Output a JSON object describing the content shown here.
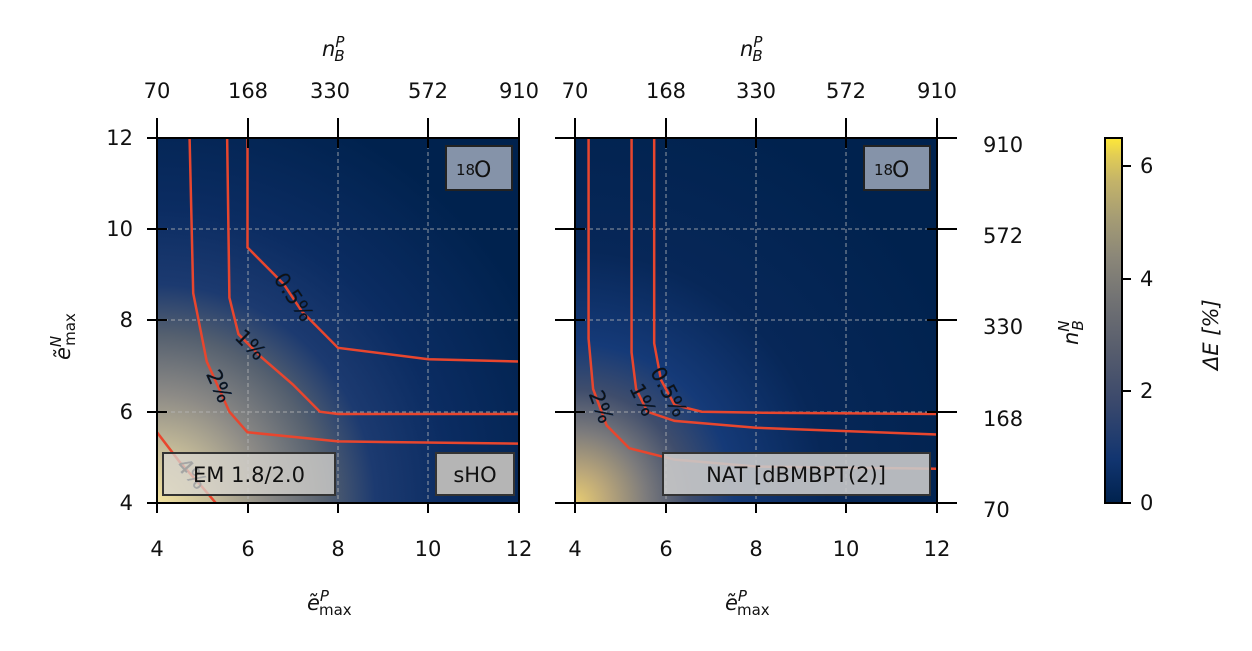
{
  "chart_data": [
    {
      "type": "heatmap",
      "panel": "left",
      "xlabel": "ẽ^P_max",
      "ylabel": "ẽ^N_max",
      "top_label": "n^P_B",
      "xlim": [
        4,
        12
      ],
      "ylim": [
        4,
        12
      ],
      "x_ticks": [
        "4",
        "6",
        "8",
        "10",
        "12"
      ],
      "y_ticks": [
        "4",
        "6",
        "8",
        "10",
        "12"
      ],
      "top_ticks": [
        "70",
        "168",
        "330",
        "572",
        "910"
      ],
      "labels": {
        "nucleus_mass": "18",
        "nucleus_symbol": "O",
        "interaction": "EM 1.8/2.0",
        "basis": "sHO"
      },
      "contours": [
        {
          "level": "0.5%",
          "points": [
            [
              6,
              12
            ],
            [
              6,
              9.6
            ],
            [
              6.8,
              8.8
            ],
            [
              7.2,
              8.2
            ],
            [
              8,
              7.4
            ],
            [
              10,
              7.15
            ],
            [
              12,
              7.1
            ]
          ]
        },
        {
          "level": "1%",
          "points": [
            [
              5.55,
              12
            ],
            [
              5.6,
              8.5
            ],
            [
              5.8,
              7.7
            ],
            [
              6.3,
              7.2
            ],
            [
              7,
              6.6
            ],
            [
              7.6,
              6
            ],
            [
              8,
              5.95
            ],
            [
              12,
              5.95
            ]
          ]
        },
        {
          "level": "2%",
          "points": [
            [
              4.72,
              12
            ],
            [
              4.8,
              8.6
            ],
            [
              5.1,
              7.1
            ],
            [
              5.6,
              6
            ],
            [
              6,
              5.55
            ],
            [
              8,
              5.35
            ],
            [
              12,
              5.3
            ]
          ]
        },
        {
          "level": "4%",
          "points": [
            [
              4,
              5.55
            ],
            [
              4.5,
              4.9
            ],
            [
              5,
              4.35
            ],
            [
              5.3,
              4.0
            ]
          ]
        }
      ]
    },
    {
      "type": "heatmap",
      "panel": "right",
      "xlabel": "ẽ^P_max",
      "right_label": "n^N_B",
      "top_label": "n^P_B",
      "xlim": [
        4,
        12
      ],
      "ylim": [
        4,
        12
      ],
      "x_ticks": [
        "4",
        "6",
        "8",
        "10",
        "12"
      ],
      "right_ticks": [
        "70",
        "168",
        "330",
        "572",
        "910"
      ],
      "top_ticks": [
        "70",
        "168",
        "330",
        "572",
        "910"
      ],
      "labels": {
        "nucleus_mass": "18",
        "nucleus_symbol": "O",
        "basis": "NAT [dBMBPT(2)]"
      },
      "contours": [
        {
          "level": "0.5%",
          "points": [
            [
              5.75,
              12
            ],
            [
              5.75,
              7.5
            ],
            [
              5.9,
              6.7
            ],
            [
              6.2,
              6.15
            ],
            [
              6.8,
              6.0
            ],
            [
              8,
              5.98
            ],
            [
              12,
              5.95
            ]
          ]
        },
        {
          "level": "1%",
          "points": [
            [
              5.25,
              12
            ],
            [
              5.25,
              7.3
            ],
            [
              5.35,
              6.5
            ],
            [
              5.6,
              6.0
            ],
            [
              6.2,
              5.8
            ],
            [
              8,
              5.65
            ],
            [
              12,
              5.5
            ]
          ]
        },
        {
          "level": "2%",
          "points": [
            [
              4.3,
              12
            ],
            [
              4.3,
              7.6
            ],
            [
              4.4,
              6.5
            ],
            [
              4.7,
              5.7
            ],
            [
              5.2,
              5.2
            ],
            [
              6.2,
              4.95
            ],
            [
              8,
              4.8
            ],
            [
              12,
              4.75
            ]
          ]
        }
      ]
    }
  ],
  "colorbar": {
    "label": "ΔE [%]",
    "range": [
      0,
      6.5
    ],
    "ticks": [
      "0",
      "2",
      "4",
      "6"
    ],
    "contour_color": "#e8462e",
    "colormap": [
      "#00224e",
      "#123570",
      "#3b496c",
      "#575d6d",
      "#707173",
      "#8a8678",
      "#a59c74",
      "#c3b369",
      "#e1cc55",
      "#fee838"
    ]
  }
}
